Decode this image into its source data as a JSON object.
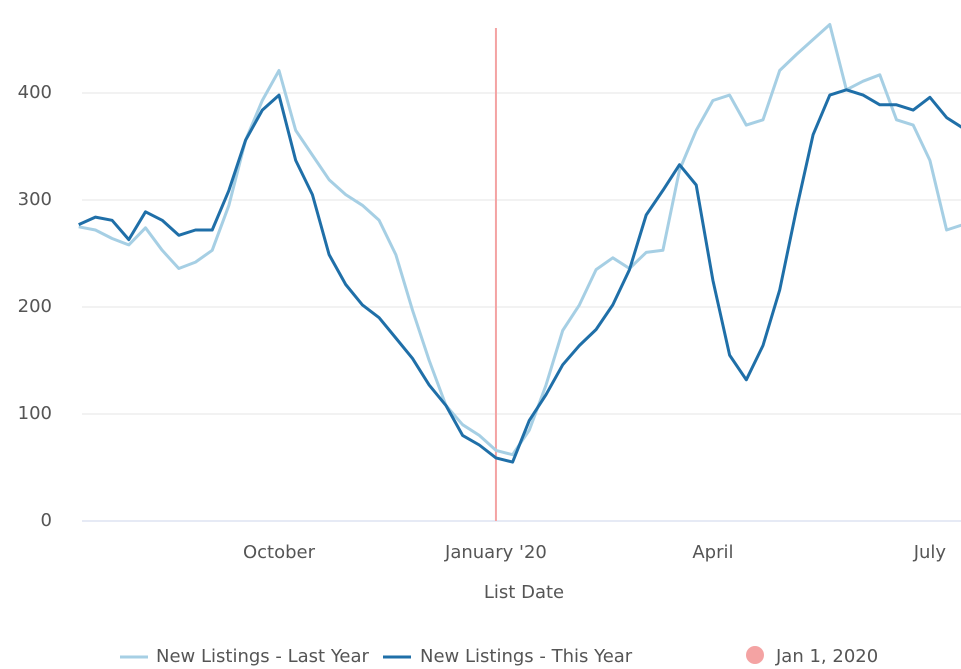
{
  "chart_data": {
    "type": "line",
    "x_label": "List Date",
    "categories": [
      null,
      null,
      null,
      null,
      null,
      null,
      null,
      null,
      null,
      null,
      null,
      null,
      "October",
      null,
      null,
      null,
      null,
      null,
      null,
      null,
      null,
      null,
      null,
      null,
      null,
      "January '20",
      null,
      null,
      null,
      null,
      null,
      null,
      null,
      null,
      null,
      null,
      null,
      null,
      "April",
      null,
      null,
      null,
      null,
      null,
      null,
      null,
      null,
      null,
      null,
      null,
      null,
      "July",
      null,
      null
    ],
    "series": [
      {
        "name": "New Listings - Last Year",
        "color": "#a6cfe4",
        "values": [
          275,
          272,
          264,
          258,
          274,
          253,
          236,
          242,
          253,
          295,
          356,
          393,
          421,
          365,
          342,
          319,
          305,
          295,
          281,
          249,
          197,
          150,
          108,
          90,
          80,
          66,
          62,
          85,
          127,
          178,
          202,
          235,
          246,
          236,
          251,
          253,
          328,
          365,
          393,
          398,
          370,
          375,
          421,
          436,
          450,
          464,
          403,
          411,
          417,
          375,
          370,
          337,
          272,
          277
        ]
      },
      {
        "name": "New Listings - This Year",
        "color": "#1f6fa8",
        "values": [
          277,
          284,
          281,
          263,
          289,
          281,
          267,
          272,
          272,
          309,
          356,
          384,
          398,
          337,
          305,
          249,
          221,
          202,
          190,
          171,
          152,
          127,
          108,
          80,
          71,
          59,
          55,
          94,
          118,
          146,
          164,
          179,
          202,
          235,
          286,
          309,
          333,
          314,
          225,
          155,
          132,
          164,
          216,
          291,
          361,
          398,
          403,
          398,
          389,
          389,
          384,
          396,
          377,
          367
        ]
      }
    ],
    "vline": {
      "label": "Jan 1, 2020",
      "category": "January '20",
      "color": "#f4a3a3"
    },
    "ylim": [
      0,
      480
    ],
    "yticks": [
      0,
      100,
      200,
      300,
      400
    ],
    "grid": true,
    "legend": "bottom"
  }
}
